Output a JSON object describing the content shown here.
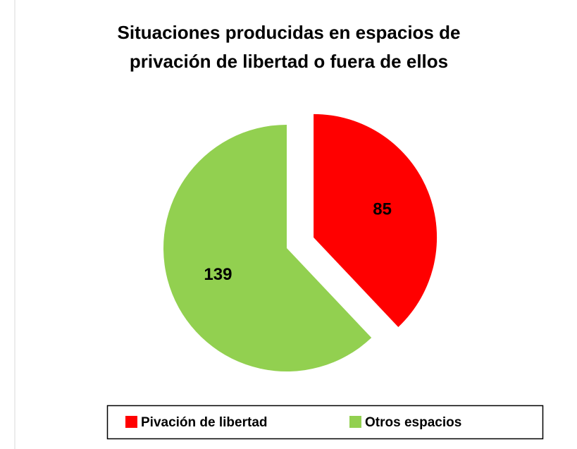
{
  "chart_data": {
    "type": "pie",
    "title": "Situaciones producidas en espacios de privación de libertad o fuera de ellos",
    "categories": [
      "Pivación de libertad",
      "Otros espacios"
    ],
    "values": [
      85,
      139
    ],
    "colors": [
      "#ff0000",
      "#92d050"
    ],
    "exploded": [
      true,
      false
    ],
    "legend": "bottom"
  }
}
